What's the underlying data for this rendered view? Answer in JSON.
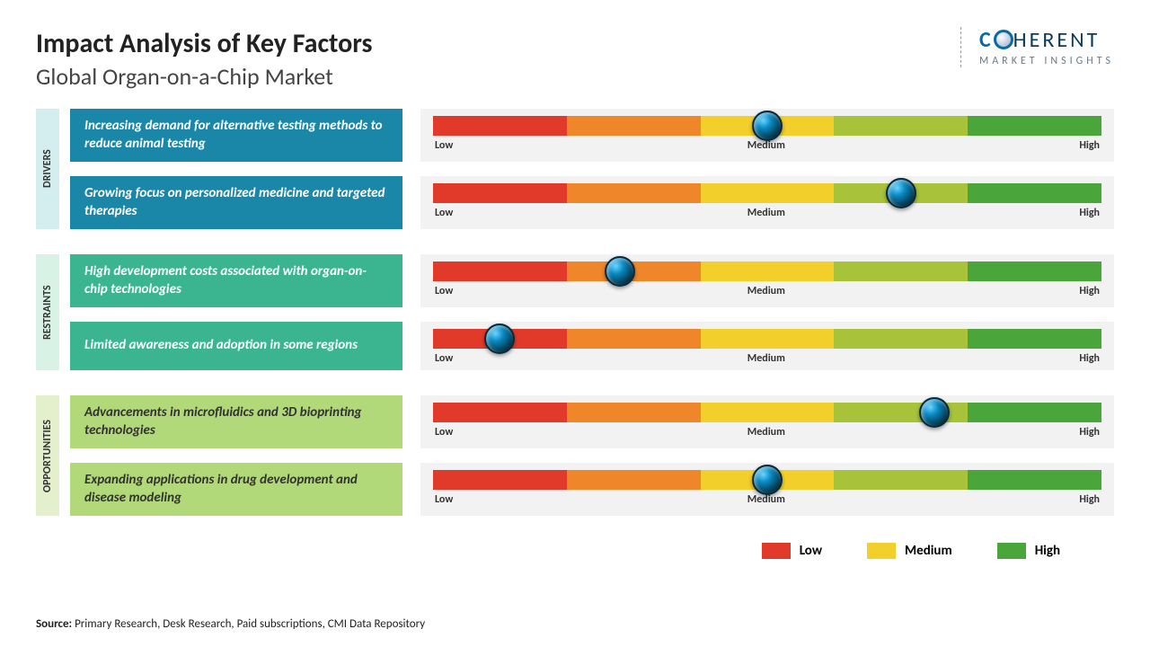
{
  "title": "Impact Analysis of Key Factors",
  "subtitle": "Global Organ-on-a-Chip Market",
  "logo": {
    "brand_pre": "C",
    "brand_post": "HERENT",
    "tagline": "MARKET INSIGHTS"
  },
  "gradient_colors": [
    "#e23a2a",
    "#f0862a",
    "#f2cf2a",
    "#a8c23a",
    "#4aa63a"
  ],
  "axis": {
    "low": "Low",
    "medium": "Medium",
    "high": "High"
  },
  "sections": [
    {
      "key": "drivers",
      "label": "DRIVERS",
      "label_bg": "#d4eef0",
      "box_bg": "#1b87a8",
      "box_color": "#ffffff",
      "rows": [
        {
          "text": "Increasing demand for alternative testing methods to reduce animal testing",
          "knob_pct": 50
        },
        {
          "text": "Growing focus on personalized medicine and targeted therapies",
          "knob_pct": 70
        }
      ]
    },
    {
      "key": "restraints",
      "label": "RESTRAINTS",
      "label_bg": "#d8f2e6",
      "box_bg": "#3bb58f",
      "box_color": "#ffffff",
      "rows": [
        {
          "text": "High development costs associated with organ-on-chip technologies",
          "knob_pct": 28
        },
        {
          "text": "Limited awareness and adoption in some regions",
          "knob_pct": 10
        }
      ]
    },
    {
      "key": "opportunities",
      "label": "OPPORTUNITIES",
      "label_bg": "#e4f0cc",
      "box_bg": "#b1d879",
      "box_color": "#333333",
      "rows": [
        {
          "text": "Advancements in microfluidics and 3D bioprinting technologies",
          "knob_pct": 75
        },
        {
          "text": "Expanding applications in drug development and disease modeling",
          "knob_pct": 50
        }
      ]
    }
  ],
  "legend": [
    {
      "label": "Low",
      "color": "#e23a2a"
    },
    {
      "label": "Medium",
      "color": "#f2cf2a"
    },
    {
      "label": "High",
      "color": "#4aa63a"
    }
  ],
  "source_label": "Source:",
  "source_text": " Primary Research, Desk Research, Paid subscriptions, CMI Data Repository"
}
